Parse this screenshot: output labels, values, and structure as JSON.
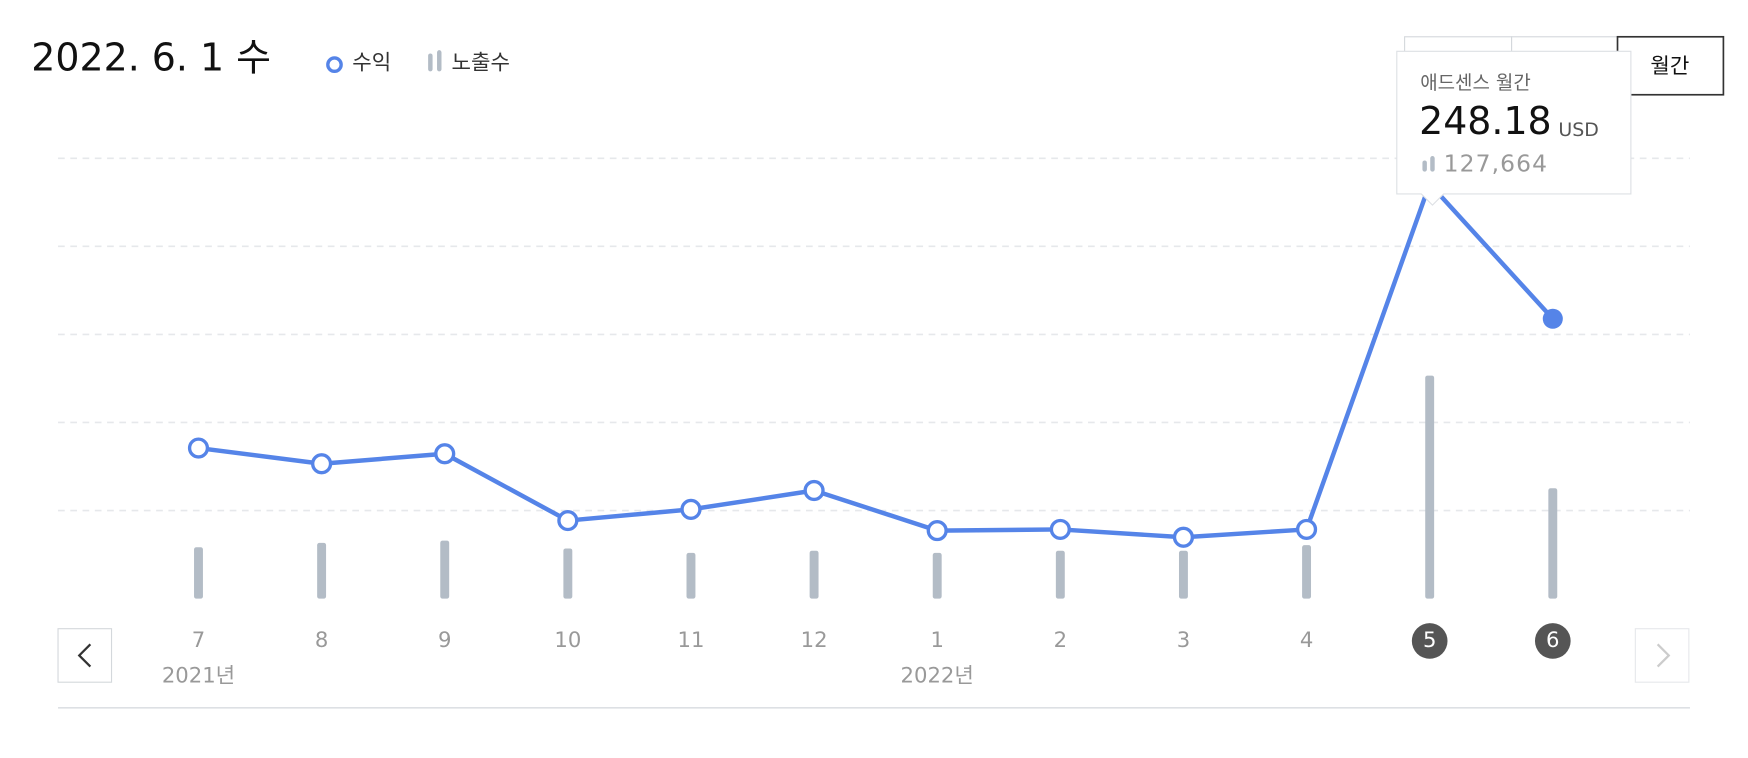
{
  "chart_data": {
    "type": "line_bar",
    "title": "2022. 6. 1 수",
    "categories": [
      "7",
      "8",
      "9",
      "10",
      "11",
      "12",
      "1",
      "2",
      "3",
      "4",
      "5",
      "6"
    ],
    "year_starts": [
      {
        "index": 0,
        "label": "2021년"
      },
      {
        "index": 6,
        "label": "2022년"
      }
    ],
    "highlighted": [
      10,
      11
    ],
    "selected": 10,
    "series": [
      {
        "name": "수익",
        "type": "line",
        "color": "#5584e8",
        "values": [
          90.1,
          80.7,
          86.7,
          46.7,
          53.4,
          64.7,
          40.7,
          41.4,
          36.7,
          41.4,
          248.18,
          167.5
        ]
      },
      {
        "name": "노출수",
        "type": "bar",
        "color": "#b3bcc6",
        "values": [
          29400,
          31900,
          33200,
          28700,
          26200,
          27400,
          26200,
          27400,
          27400,
          30600,
          127664,
          63200
        ],
        "value_labels": [
          null,
          null,
          null,
          null,
          null,
          null,
          null,
          null,
          null,
          null,
          "127,664",
          null
        ]
      }
    ],
    "tooltip": {
      "title": "애드센스 월간",
      "unit": "USD"
    },
    "period_button": "월간"
  }
}
